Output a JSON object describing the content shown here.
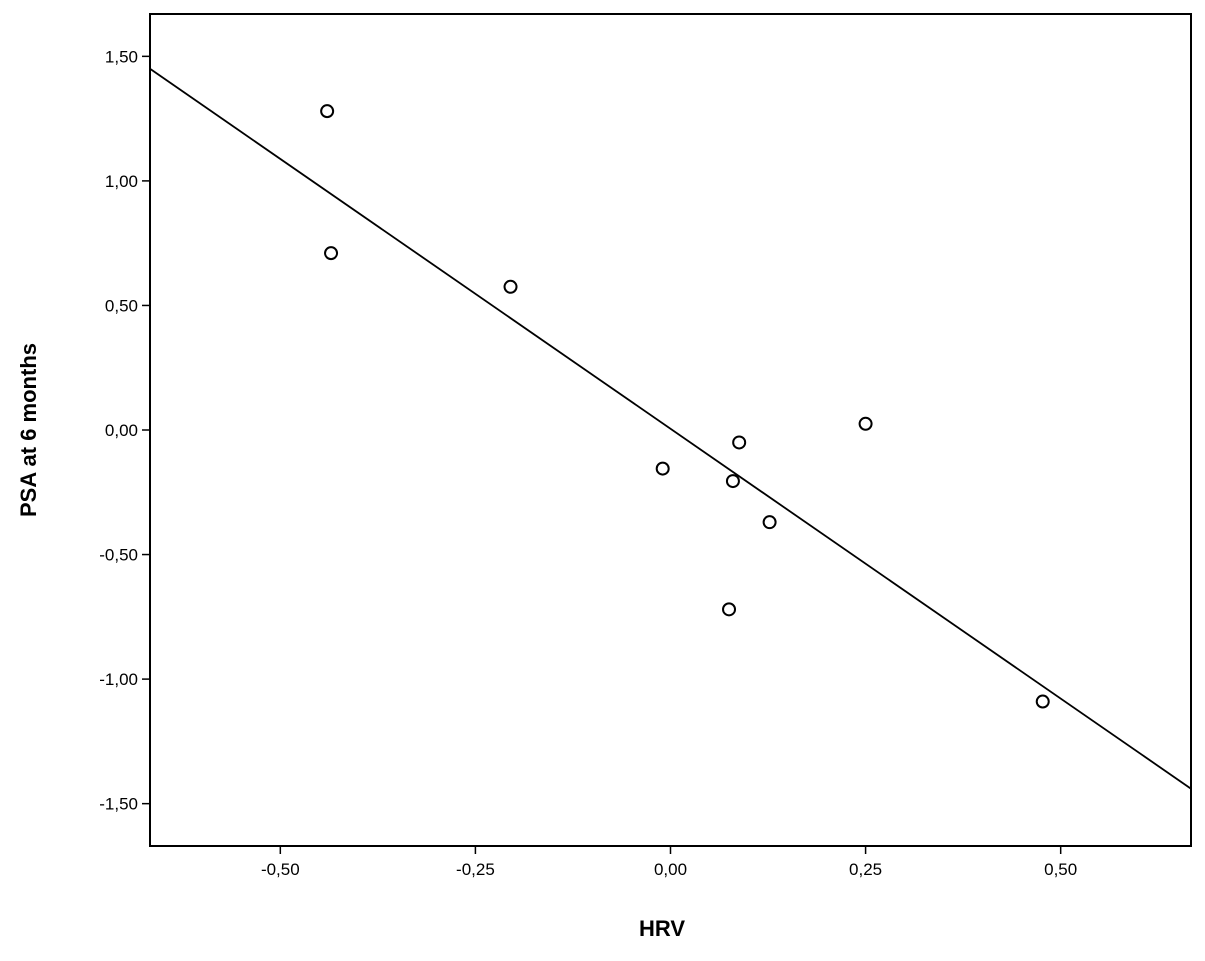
{
  "chart_data": {
    "type": "scatter",
    "title": "",
    "xlabel": "HRV",
    "ylabel": "PSA at 6 months",
    "xlim": [
      -0.667,
      0.667
    ],
    "ylim": [
      -1.67,
      1.67
    ],
    "x_ticks": [
      -0.5,
      -0.25,
      0.0,
      0.25,
      0.5
    ],
    "x_tick_labels": [
      "-0,50",
      "-0,25",
      "0,00",
      "0,25",
      "0,50"
    ],
    "y_ticks": [
      1.5,
      1.0,
      0.5,
      0.0,
      -0.5,
      -1.0,
      -1.5
    ],
    "y_tick_labels": [
      "1,50",
      "1,00",
      "0,50",
      "0,00",
      "-0,50",
      "-1,00",
      "-1,50"
    ],
    "grid": false,
    "legend": "none",
    "series": [
      {
        "marker": "open-circle",
        "color": "#000000",
        "points": [
          {
            "x": -0.44,
            "y": 1.28
          },
          {
            "x": -0.435,
            "y": 0.71
          },
          {
            "x": -0.205,
            "y": 0.575
          },
          {
            "x": -0.01,
            "y": -0.155
          },
          {
            "x": 0.08,
            "y": -0.205
          },
          {
            "x": 0.088,
            "y": -0.05
          },
          {
            "x": 0.127,
            "y": -0.37
          },
          {
            "x": 0.075,
            "y": -0.72
          },
          {
            "x": 0.25,
            "y": 0.025
          },
          {
            "x": 0.477,
            "y": -1.09
          }
        ]
      }
    ],
    "fit_line": {
      "color": "#000000",
      "x": [
        -0.667,
        0.667
      ],
      "y": [
        1.45,
        -1.44
      ]
    }
  }
}
